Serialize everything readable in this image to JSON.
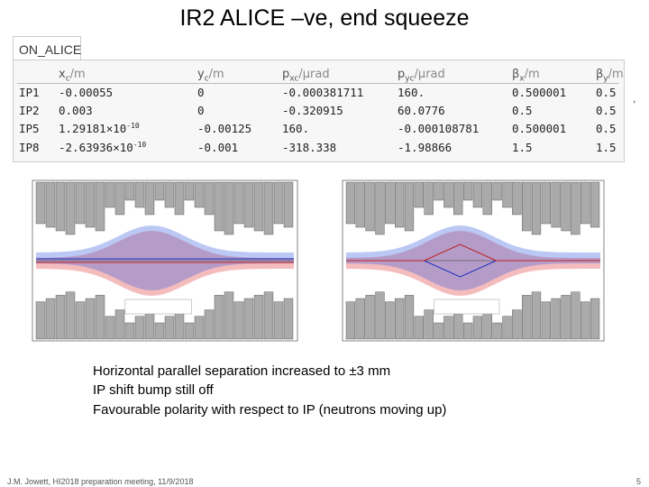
{
  "title": "IR2 ALICE –ve, end squeeze",
  "table": {
    "label": "ON_ALICE",
    "header": [
      {
        "base": "x",
        "sub": "c",
        "unit": "/m"
      },
      {
        "base": "y",
        "sub": "c",
        "unit": "/m"
      },
      {
        "base": "p",
        "sub": "xc",
        "unit": "/μrad"
      },
      {
        "base": "p",
        "sub": "yc",
        "unit": "/μrad"
      },
      {
        "base": "β",
        "sub": "x",
        "unit": "/m"
      },
      {
        "base": "β",
        "sub": "y",
        "unit": "/m"
      }
    ],
    "rows": [
      [
        "IP1",
        "-0.00055",
        "0",
        "-0.000381711",
        "160.",
        "0.500001",
        "0.5"
      ],
      [
        "IP2",
        "0.003",
        "0",
        "-0.320915",
        "60.0776",
        "0.5",
        "0.5"
      ],
      [
        "IP5",
        {
          "mantissa": "1.29181",
          "times": "×10",
          "exp": "-10"
        },
        "-0.00125",
        "160.",
        "-0.000108781",
        "0.500001",
        "0.5"
      ],
      [
        "IP8",
        {
          "mantissa": "-2.63936",
          "times": "×10",
          "exp": "-10"
        },
        "-0.001",
        "-318.338",
        "-1.98866",
        "1.5",
        "1.5"
      ]
    ]
  },
  "stray": ",",
  "body": [
    "Horizontal parallel separation increased to ±3 mm",
    "IP shift bump still off",
    "Favourable polarity with respect to IP (neutrons moving up)"
  ],
  "footer": {
    "credit": "J.M. Jowett, HI2018 preparation meeting, 11/9/2018",
    "page": "5"
  }
}
